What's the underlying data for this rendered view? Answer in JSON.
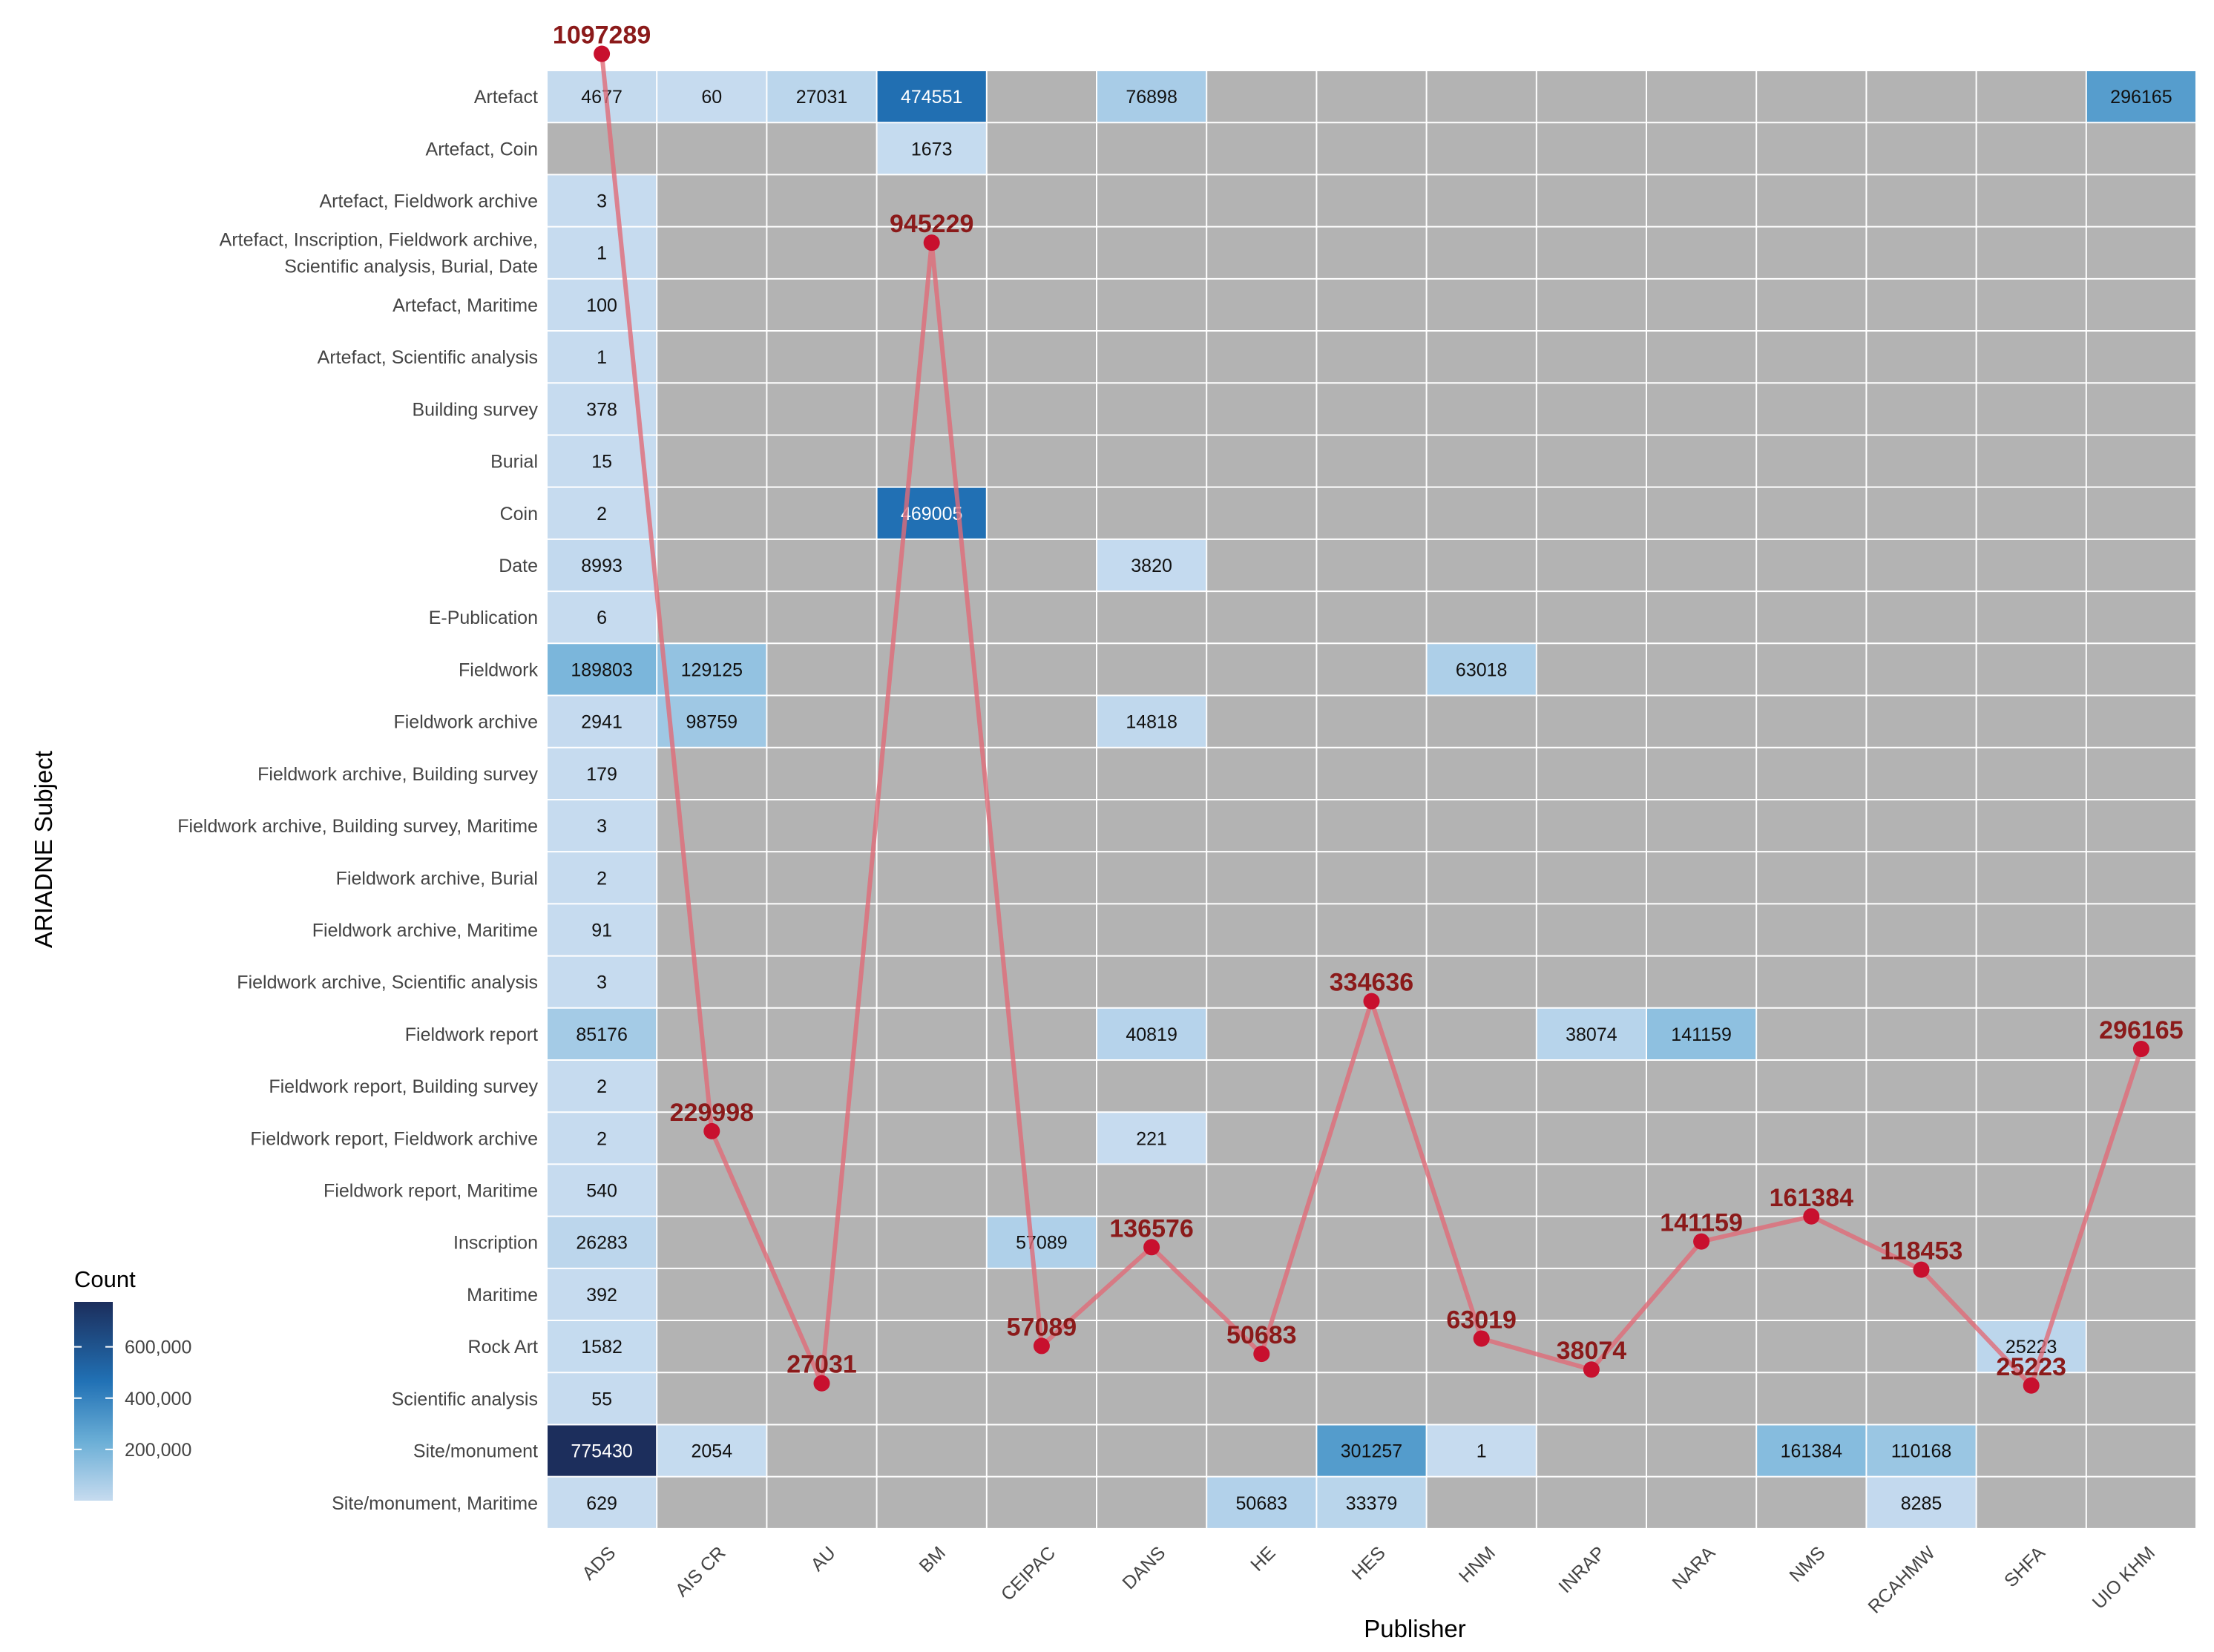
{
  "chart_data": {
    "type": "heatmap",
    "xlabel": "Publisher",
    "ylabel": "ARIADNE Subject",
    "legend": {
      "title": "Count",
      "ticks": [
        200000,
        400000,
        600000
      ],
      "tick_labels": [
        "200,000",
        "400,000",
        "600,000"
      ],
      "range": [
        1,
        775430
      ],
      "placement": "bottom-left"
    },
    "colors": {
      "missing": "#b3b3b3",
      "low": "#c6dbef",
      "mid": "#2171b5",
      "high": "#1c2e5c",
      "line": "#e06c78",
      "point": "#c8102e",
      "total_label": "#8b1a1a",
      "grid": "#ffffff"
    },
    "publishers": [
      "ADS",
      "AIS CR",
      "AU",
      "BM",
      "CEIPAC",
      "DANS",
      "HE",
      "HES",
      "HNM",
      "INRAP",
      "NARA",
      "NMS",
      "RCAHMW",
      "SHFA",
      "UIO KHM"
    ],
    "subjects": [
      "Artefact",
      "Artefact, Coin",
      "Artefact, Fieldwork archive",
      "Artefact, Inscription, Fieldwork archive,\nScientific analysis, Burial, Date",
      "Artefact, Maritime",
      "Artefact, Scientific analysis",
      "Building survey",
      "Burial",
      "Coin",
      "Date",
      "E-Publication",
      "Fieldwork",
      "Fieldwork archive",
      "Fieldwork archive, Building survey",
      "Fieldwork archive, Building survey, Maritime",
      "Fieldwork archive, Burial",
      "Fieldwork archive, Maritime",
      "Fieldwork archive, Scientific analysis",
      "Fieldwork report",
      "Fieldwork report, Building survey",
      "Fieldwork report, Fieldwork archive",
      "Fieldwork report, Maritime",
      "Inscription",
      "Maritime",
      "Rock Art",
      "Scientific analysis",
      "Site/monument",
      "Site/monument, Maritime"
    ],
    "cells": [
      {
        "subject": "Artefact",
        "publisher": "ADS",
        "value": 4677
      },
      {
        "subject": "Artefact",
        "publisher": "AIS CR",
        "value": 60
      },
      {
        "subject": "Artefact",
        "publisher": "AU",
        "value": 27031
      },
      {
        "subject": "Artefact",
        "publisher": "BM",
        "value": 474551
      },
      {
        "subject": "Artefact",
        "publisher": "DANS",
        "value": 76898
      },
      {
        "subject": "Artefact",
        "publisher": "UIO KHM",
        "value": 296165
      },
      {
        "subject": "Artefact, Coin",
        "publisher": "BM",
        "value": 1673
      },
      {
        "subject": "Artefact, Fieldwork archive",
        "publisher": "ADS",
        "value": 3
      },
      {
        "subject": "Artefact, Inscription, Fieldwork archive,\nScientific analysis, Burial, Date",
        "publisher": "ADS",
        "value": 1
      },
      {
        "subject": "Artefact, Maritime",
        "publisher": "ADS",
        "value": 100
      },
      {
        "subject": "Artefact, Scientific analysis",
        "publisher": "ADS",
        "value": 1
      },
      {
        "subject": "Building survey",
        "publisher": "ADS",
        "value": 378
      },
      {
        "subject": "Burial",
        "publisher": "ADS",
        "value": 15
      },
      {
        "subject": "Coin",
        "publisher": "ADS",
        "value": 2
      },
      {
        "subject": "Coin",
        "publisher": "BM",
        "value": 469005
      },
      {
        "subject": "Date",
        "publisher": "ADS",
        "value": 8993
      },
      {
        "subject": "Date",
        "publisher": "DANS",
        "value": 3820
      },
      {
        "subject": "E-Publication",
        "publisher": "ADS",
        "value": 6
      },
      {
        "subject": "Fieldwork",
        "publisher": "ADS",
        "value": 189803
      },
      {
        "subject": "Fieldwork",
        "publisher": "AIS CR",
        "value": 129125
      },
      {
        "subject": "Fieldwork",
        "publisher": "HNM",
        "value": 63018
      },
      {
        "subject": "Fieldwork archive",
        "publisher": "ADS",
        "value": 2941
      },
      {
        "subject": "Fieldwork archive",
        "publisher": "AIS CR",
        "value": 98759
      },
      {
        "subject": "Fieldwork archive",
        "publisher": "DANS",
        "value": 14818
      },
      {
        "subject": "Fieldwork archive, Building survey",
        "publisher": "ADS",
        "value": 179
      },
      {
        "subject": "Fieldwork archive, Building survey, Maritime",
        "publisher": "ADS",
        "value": 3
      },
      {
        "subject": "Fieldwork archive, Burial",
        "publisher": "ADS",
        "value": 2
      },
      {
        "subject": "Fieldwork archive, Maritime",
        "publisher": "ADS",
        "value": 91
      },
      {
        "subject": "Fieldwork archive, Scientific analysis",
        "publisher": "ADS",
        "value": 3
      },
      {
        "subject": "Fieldwork report",
        "publisher": "ADS",
        "value": 85176
      },
      {
        "subject": "Fieldwork report",
        "publisher": "DANS",
        "value": 40819
      },
      {
        "subject": "Fieldwork report",
        "publisher": "INRAP",
        "value": 38074
      },
      {
        "subject": "Fieldwork report",
        "publisher": "NARA",
        "value": 141159
      },
      {
        "subject": "Fieldwork report, Building survey",
        "publisher": "ADS",
        "value": 2
      },
      {
        "subject": "Fieldwork report, Fieldwork archive",
        "publisher": "ADS",
        "value": 2
      },
      {
        "subject": "Fieldwork report, Fieldwork archive",
        "publisher": "DANS",
        "value": 221
      },
      {
        "subject": "Fieldwork report, Maritime",
        "publisher": "ADS",
        "value": 540
      },
      {
        "subject": "Inscription",
        "publisher": "ADS",
        "value": 26283
      },
      {
        "subject": "Inscription",
        "publisher": "CEIPAC",
        "value": 57089
      },
      {
        "subject": "Maritime",
        "publisher": "ADS",
        "value": 392
      },
      {
        "subject": "Rock Art",
        "publisher": "ADS",
        "value": 1582
      },
      {
        "subject": "Rock Art",
        "publisher": "SHFA",
        "value": 25223
      },
      {
        "subject": "Scientific analysis",
        "publisher": "ADS",
        "value": 55
      },
      {
        "subject": "Site/monument",
        "publisher": "ADS",
        "value": 775430
      },
      {
        "subject": "Site/monument",
        "publisher": "AIS CR",
        "value": 2054
      },
      {
        "subject": "Site/monument",
        "publisher": "HES",
        "value": 301257
      },
      {
        "subject": "Site/monument",
        "publisher": "HNM",
        "value": 1
      },
      {
        "subject": "Site/monument",
        "publisher": "NMS",
        "value": 161384
      },
      {
        "subject": "Site/monument",
        "publisher": "RCAHMW",
        "value": 110168
      },
      {
        "subject": "Site/monument, Maritime",
        "publisher": "ADS",
        "value": 629
      },
      {
        "subject": "Site/monument, Maritime",
        "publisher": "HE",
        "value": 50683
      },
      {
        "subject": "Site/monument, Maritime",
        "publisher": "HES",
        "value": 33379
      },
      {
        "subject": "Site/monument, Maritime",
        "publisher": "RCAHMW",
        "value": 8285
      }
    ],
    "totals": [
      {
        "publisher": "ADS",
        "value": 1097289
      },
      {
        "publisher": "AIS CR",
        "value": 229998
      },
      {
        "publisher": "AU",
        "value": 27031
      },
      {
        "publisher": "BM",
        "value": 945229
      },
      {
        "publisher": "CEIPAC",
        "value": 57089
      },
      {
        "publisher": "DANS",
        "value": 136576
      },
      {
        "publisher": "HE",
        "value": 50683
      },
      {
        "publisher": "HES",
        "value": 334636
      },
      {
        "publisher": "HNM",
        "value": 63019
      },
      {
        "publisher": "INRAP",
        "value": 38074
      },
      {
        "publisher": "NARA",
        "value": 141159
      },
      {
        "publisher": "NMS",
        "value": 161384
      },
      {
        "publisher": "RCAHMW",
        "value": 118453
      },
      {
        "publisher": "SHFA",
        "value": 25223
      },
      {
        "publisher": "UIO KHM",
        "value": 296165
      }
    ],
    "totals_range": [
      0,
      1100000
    ]
  }
}
